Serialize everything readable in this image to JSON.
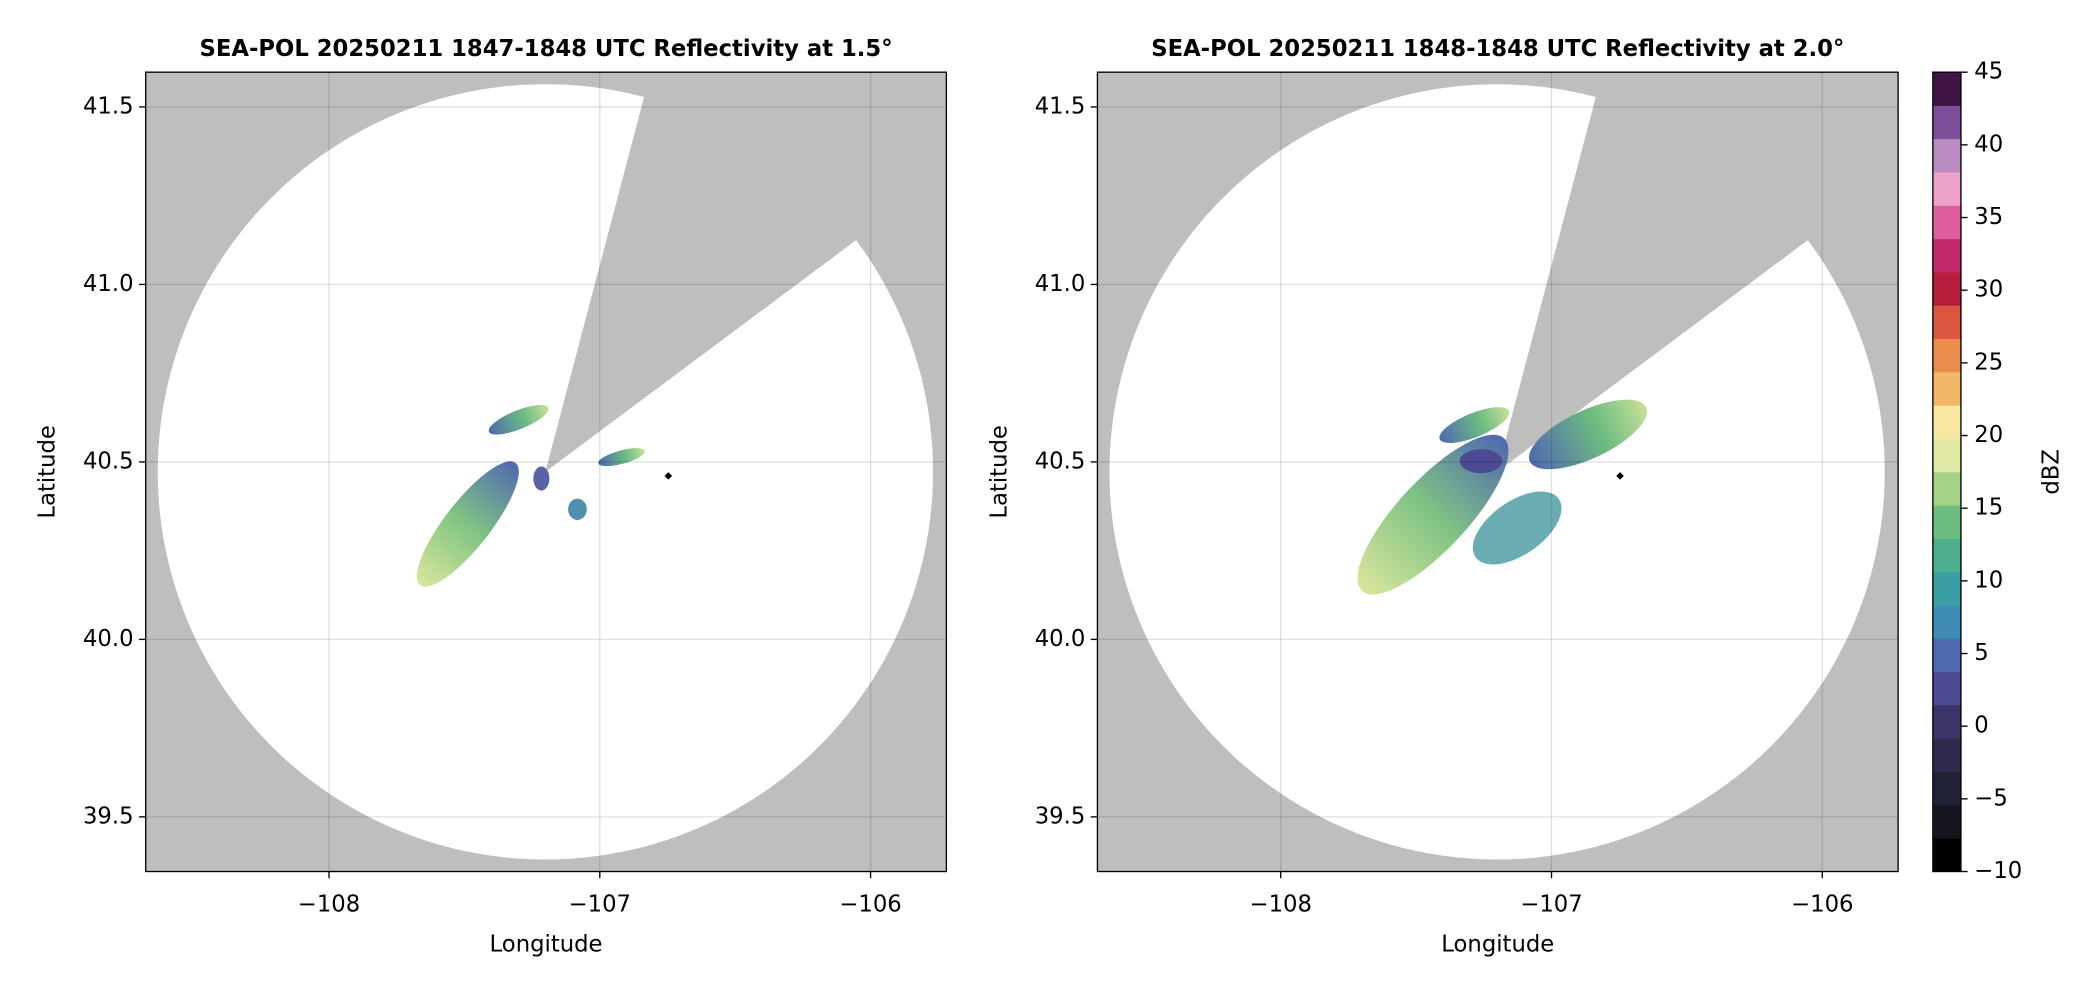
{
  "chart_data": [
    {
      "type": "map",
      "title": "SEA-POL 20250211 1847-1848 UTC Reflectivity at 1.5°",
      "xlabel": "Longitude",
      "ylabel": "Latitude",
      "xlim": [
        -108.677,
        -105.72
      ],
      "ylim": [
        39.346,
        41.598
      ],
      "xticks": [
        {
          "value": -108,
          "label": "−108"
        },
        {
          "value": -107,
          "label": "−107"
        },
        {
          "value": -106,
          "label": "−106"
        }
      ],
      "yticks": [
        {
          "value": 39.5,
          "label": "39.5"
        },
        {
          "value": 40,
          "label": "40.0"
        },
        {
          "value": 40.5,
          "label": "40.5"
        },
        {
          "value": 41,
          "label": "41.0"
        },
        {
          "value": 41.5,
          "label": "41.5"
        }
      ],
      "grid": true
    },
    {
      "type": "map",
      "title": "SEA-POL 20250211 1848-1848 UTC Reflectivity at 2.0°",
      "xlabel": "Longitude",
      "ylabel": "Latitude",
      "xlim": [
        -108.677,
        -105.72
      ],
      "ylim": [
        39.346,
        41.598
      ],
      "xticks": [
        {
          "value": -108,
          "label": "−108"
        },
        {
          "value": -107,
          "label": "−107"
        },
        {
          "value": -106,
          "label": "−106"
        }
      ],
      "yticks": [
        {
          "value": 39.5,
          "label": "39.5"
        },
        {
          "value": 40,
          "label": "40.0"
        },
        {
          "value": 40.5,
          "label": "40.5"
        },
        {
          "value": 41,
          "label": "41.0"
        },
        {
          "value": 41.5,
          "label": "41.5"
        }
      ],
      "grid": true
    },
    {
      "type": "colorbar",
      "label": "dBZ",
      "ylim": [
        -10,
        45
      ],
      "yticks": [
        {
          "value": -10,
          "label": "−10"
        },
        {
          "value": -5,
          "label": "−5"
        },
        0,
        5,
        10,
        15,
        20,
        25,
        30,
        35,
        40,
        45
      ],
      "colormap": [
        "#000000",
        "#15151f",
        "#222236",
        "#2e2b4e",
        "#3b3468",
        "#4b4a92",
        "#4f69b0",
        "#3f8db5",
        "#3a9fa3",
        "#4eae8d",
        "#6dbd80",
        "#a5d386",
        "#e2e9a4",
        "#f7e7a0",
        "#f2b766",
        "#e98c4c",
        "#d9573f",
        "#b51f3c",
        "#c2296b",
        "#df5f9d",
        "#eba1c9",
        "#b98bc1",
        "#7b4f9a",
        "#401545"
      ]
    }
  ]
}
